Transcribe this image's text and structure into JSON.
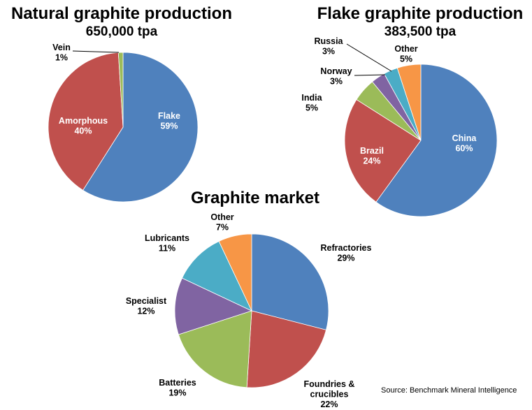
{
  "chart_data": [
    {
      "type": "pie",
      "title": "Natural graphite production",
      "subtitle": "650,000 tpa",
      "categories": [
        "Flake",
        "Amorphous",
        "Vein"
      ],
      "values": [
        59,
        40,
        1
      ],
      "value_labels": [
        "59%",
        "40%",
        "1%"
      ],
      "colors": [
        "#4F81BD",
        "#C0504D",
        "#9BBB59"
      ]
    },
    {
      "type": "pie",
      "title": "Flake graphite production",
      "subtitle": "383,500 tpa",
      "categories": [
        "China",
        "Brazil",
        "India",
        "Norway",
        "Russia",
        "Other"
      ],
      "values": [
        60,
        24,
        5,
        3,
        3,
        5
      ],
      "value_labels": [
        "60%",
        "24%",
        "5%",
        "3%",
        "3%",
        "5%"
      ],
      "colors": [
        "#4F81BD",
        "#C0504D",
        "#9BBB59",
        "#8064A2",
        "#4BACC6",
        "#F79646"
      ]
    },
    {
      "type": "pie",
      "title": "Graphite market",
      "categories": [
        "Refractories",
        "Foundries & crucibles",
        "Batteries",
        "Specialist",
        "Lubricants",
        "Other"
      ],
      "values": [
        29,
        22,
        19,
        12,
        11,
        7
      ],
      "value_labels": [
        "29%",
        "22%",
        "19%",
        "12%",
        "11%",
        "7%"
      ],
      "colors": [
        "#4F81BD",
        "#C0504D",
        "#9BBB59",
        "#8064A2",
        "#4BACC6",
        "#F79646"
      ]
    }
  ],
  "source": "Source: Benchmark Mineral Intelligence"
}
